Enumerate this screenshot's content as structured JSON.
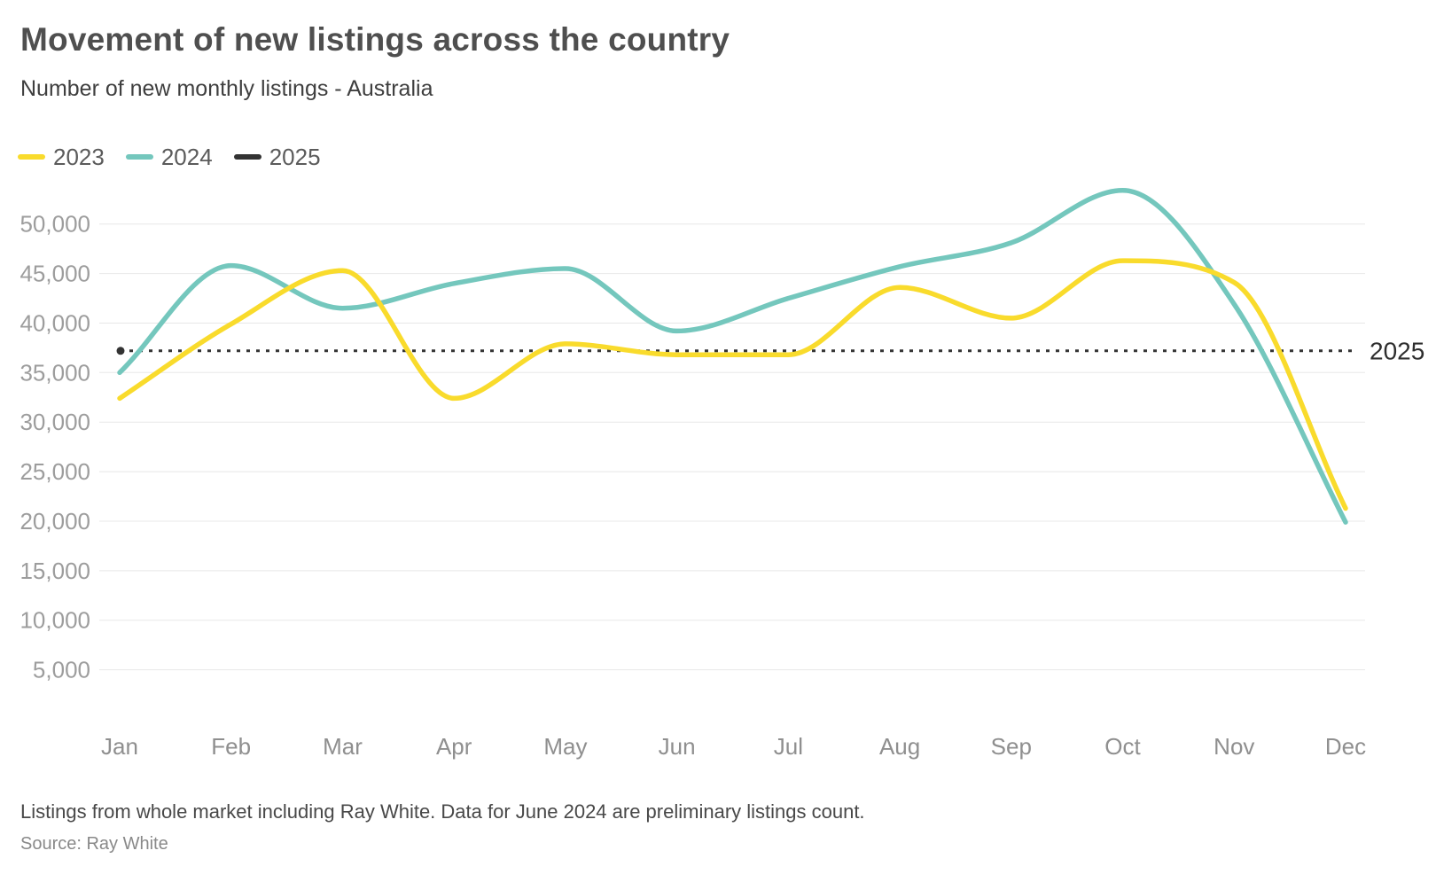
{
  "header": {
    "title": "Movement of new listings across the country",
    "subtitle": "Number of new monthly listings - Australia"
  },
  "legend": {
    "items": [
      {
        "label": "2023",
        "color": "#F9DB2C"
      },
      {
        "label": "2024",
        "color": "#74C7BD"
      },
      {
        "label": "2025",
        "color": "#333333"
      }
    ]
  },
  "footer": {
    "note": "Listings from whole market including Ray White. Data for June 2024 are preliminary listings count.",
    "source": "Source: Ray White"
  },
  "chart_data": {
    "type": "line",
    "title": "Movement of new listings across the country",
    "subtitle": "Number of new monthly listings - Australia",
    "categories": [
      "Jan",
      "Feb",
      "Mar",
      "Apr",
      "May",
      "Jun",
      "Jul",
      "Aug",
      "Sep",
      "Oct",
      "Nov",
      "Dec"
    ],
    "series": [
      {
        "name": "2023",
        "color": "#F9DB2C",
        "style": "solid",
        "values": [
          32400,
          39900,
          45300,
          32400,
          37900,
          36800,
          36800,
          43600,
          40500,
          46300,
          44100,
          21300
        ]
      },
      {
        "name": "2024",
        "color": "#74C7BD",
        "style": "solid",
        "values": [
          35000,
          45800,
          41500,
          44000,
          45500,
          39200,
          42500,
          45700,
          48100,
          53400,
          41900,
          19900
        ]
      },
      {
        "name": "2025",
        "color": "#333333",
        "style": "dotted-reference",
        "values": [
          37200
        ],
        "annotation": "2025"
      }
    ],
    "yticks": [
      50000,
      45000,
      40000,
      35000,
      30000,
      25000,
      20000,
      15000,
      10000,
      5000
    ],
    "ytick_labels": [
      "50,000",
      "45,000",
      "40,000",
      "35,000",
      "30,000",
      "25,000",
      "20,000",
      "15,000",
      "10,000",
      "5,000"
    ],
    "ylim": [
      0,
      55000
    ],
    "grid": true,
    "legend_position": "top-left"
  }
}
